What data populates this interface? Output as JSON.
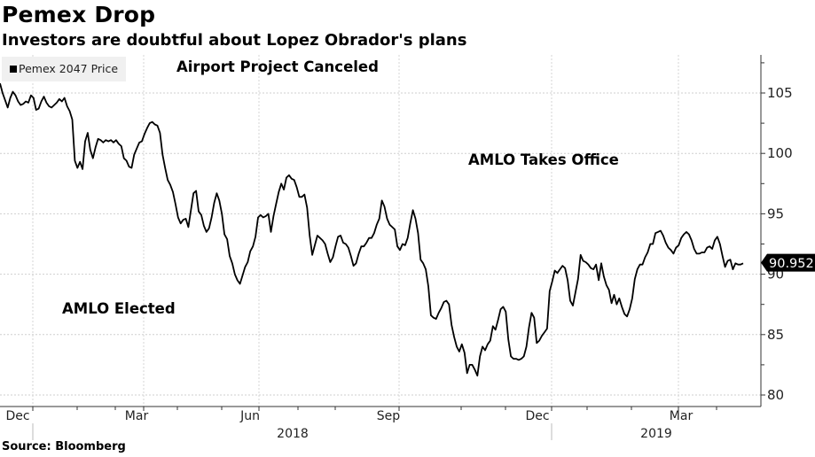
{
  "header": {
    "title": "Pemex Drop",
    "subtitle": "Investors are doubtful about Lopez Obrador's plans"
  },
  "legend": {
    "label": "Pemex 2047 Price",
    "color": "#000000"
  },
  "annotations": {
    "airport": "Airport Project Canceled",
    "takes_office": "AMLO Takes Office",
    "elected": "AMLO Elected"
  },
  "footer": {
    "source": "Source: Bloomberg"
  },
  "chart_data": {
    "type": "line",
    "title": "Pemex Drop",
    "subtitle": "Investors are doubtful about Lopez Obrador's plans",
    "xlabel": "",
    "ylabel": "",
    "ylim": [
      80,
      108
    ],
    "yticks": [
      80,
      85,
      90,
      95,
      100,
      105
    ],
    "ytick_labels": [
      "80",
      "85",
      "90",
      "95",
      "100",
      "105"
    ],
    "x_range": [
      "2017-11-20",
      "2019-04-30"
    ],
    "xtick_labels": [
      "Dec",
      "Mar",
      "Jun",
      "Sep",
      "Dec",
      "Mar"
    ],
    "year_labels": [
      "2018",
      "2019"
    ],
    "grid": true,
    "legend_position": "top-left",
    "last_value_label": "90.952",
    "series": [
      {
        "name": "Pemex 2047 Price",
        "color": "#000000",
        "values": [
          105.8,
          105.0,
          104.4,
          103.8,
          104.6,
          105.1,
          104.8,
          104.3,
          104.0,
          104.1,
          104.3,
          104.2,
          104.8,
          104.6,
          103.6,
          103.7,
          104.3,
          104.7,
          104.2,
          103.9,
          103.8,
          104.0,
          104.2,
          104.5,
          104.3,
          104.6,
          103.9,
          103.5,
          102.8,
          99.4,
          98.8,
          99.3,
          98.7,
          101.0,
          101.7,
          100.3,
          99.6,
          100.5,
          101.2,
          101.1,
          100.9,
          101.1,
          101.0,
          101.1,
          100.9,
          101.1,
          100.8,
          100.6,
          99.6,
          99.4,
          98.9,
          98.8,
          99.9,
          100.4,
          100.9,
          101.0,
          101.6,
          102.1,
          102.5,
          102.6,
          102.4,
          102.3,
          101.7,
          99.9,
          98.8,
          97.8,
          97.4,
          96.8,
          95.8,
          94.7,
          94.2,
          94.5,
          94.6,
          93.9,
          95.3,
          96.7,
          96.9,
          95.2,
          94.9,
          94.0,
          93.5,
          93.8,
          94.7,
          95.9,
          96.7,
          96.1,
          95.0,
          93.3,
          92.9,
          91.5,
          90.9,
          90.0,
          89.5,
          89.2,
          89.9,
          90.6,
          91.0,
          91.9,
          92.3,
          93.1,
          94.7,
          94.9,
          94.7,
          94.8,
          95.0,
          93.5,
          94.8,
          95.8,
          96.8,
          97.5,
          97.0,
          98.0,
          98.2,
          97.9,
          97.8,
          97.2,
          96.4,
          96.4,
          96.6,
          95.5,
          93.2,
          91.6,
          92.4,
          93.2,
          93.0,
          92.8,
          92.5,
          91.7,
          91.0,
          91.4,
          92.3,
          93.1,
          93.2,
          92.6,
          92.5,
          92.2,
          91.5,
          90.7,
          90.9,
          91.7,
          92.3,
          92.3,
          92.6,
          93.0,
          93.0,
          93.4,
          94.1,
          94.6,
          96.1,
          95.6,
          94.6,
          94.1,
          93.9,
          93.7,
          92.3,
          92.0,
          92.5,
          92.4,
          93.0,
          94.2,
          95.3,
          94.6,
          93.4,
          91.2,
          90.9,
          90.4,
          89.0,
          86.6,
          86.4,
          86.3,
          86.8,
          87.2,
          87.7,
          87.8,
          87.5,
          85.8,
          84.8,
          84.0,
          83.6,
          84.2,
          83.5,
          81.8,
          82.5,
          82.5,
          82.1,
          81.6,
          83.2,
          84.0,
          83.7,
          84.2,
          84.5,
          85.7,
          85.4,
          86.2,
          87.1,
          87.3,
          86.9,
          84.6,
          83.2,
          83.0,
          83.0,
          82.9,
          83.0,
          83.2,
          84.0,
          85.6,
          86.8,
          86.4,
          84.3,
          84.5,
          84.9,
          85.2,
          85.5,
          88.6,
          89.4,
          90.3,
          90.1,
          90.4,
          90.7,
          90.5,
          89.5,
          87.8,
          87.4,
          88.5,
          89.6,
          91.6,
          91.1,
          91.0,
          90.8,
          90.5,
          90.4,
          90.8,
          89.5,
          90.9,
          89.8,
          89.1,
          88.7,
          87.6,
          88.3,
          87.5,
          88.0,
          87.3,
          86.7,
          86.5,
          87.1,
          88.0,
          89.6,
          90.4,
          90.8,
          90.8,
          91.4,
          91.8,
          92.5,
          92.5,
          93.4,
          93.5,
          93.6,
          93.2,
          92.6,
          92.2,
          92.0,
          91.7,
          92.2,
          92.4,
          93.0,
          93.3,
          93.5,
          93.3,
          92.8,
          92.1,
          91.7,
          91.7,
          91.8,
          91.8,
          92.2,
          92.3,
          92.1,
          92.8,
          93.1,
          92.5,
          91.5,
          90.6,
          91.1,
          91.2,
          90.4,
          90.9,
          90.8,
          90.8,
          90.9
        ]
      }
    ]
  }
}
